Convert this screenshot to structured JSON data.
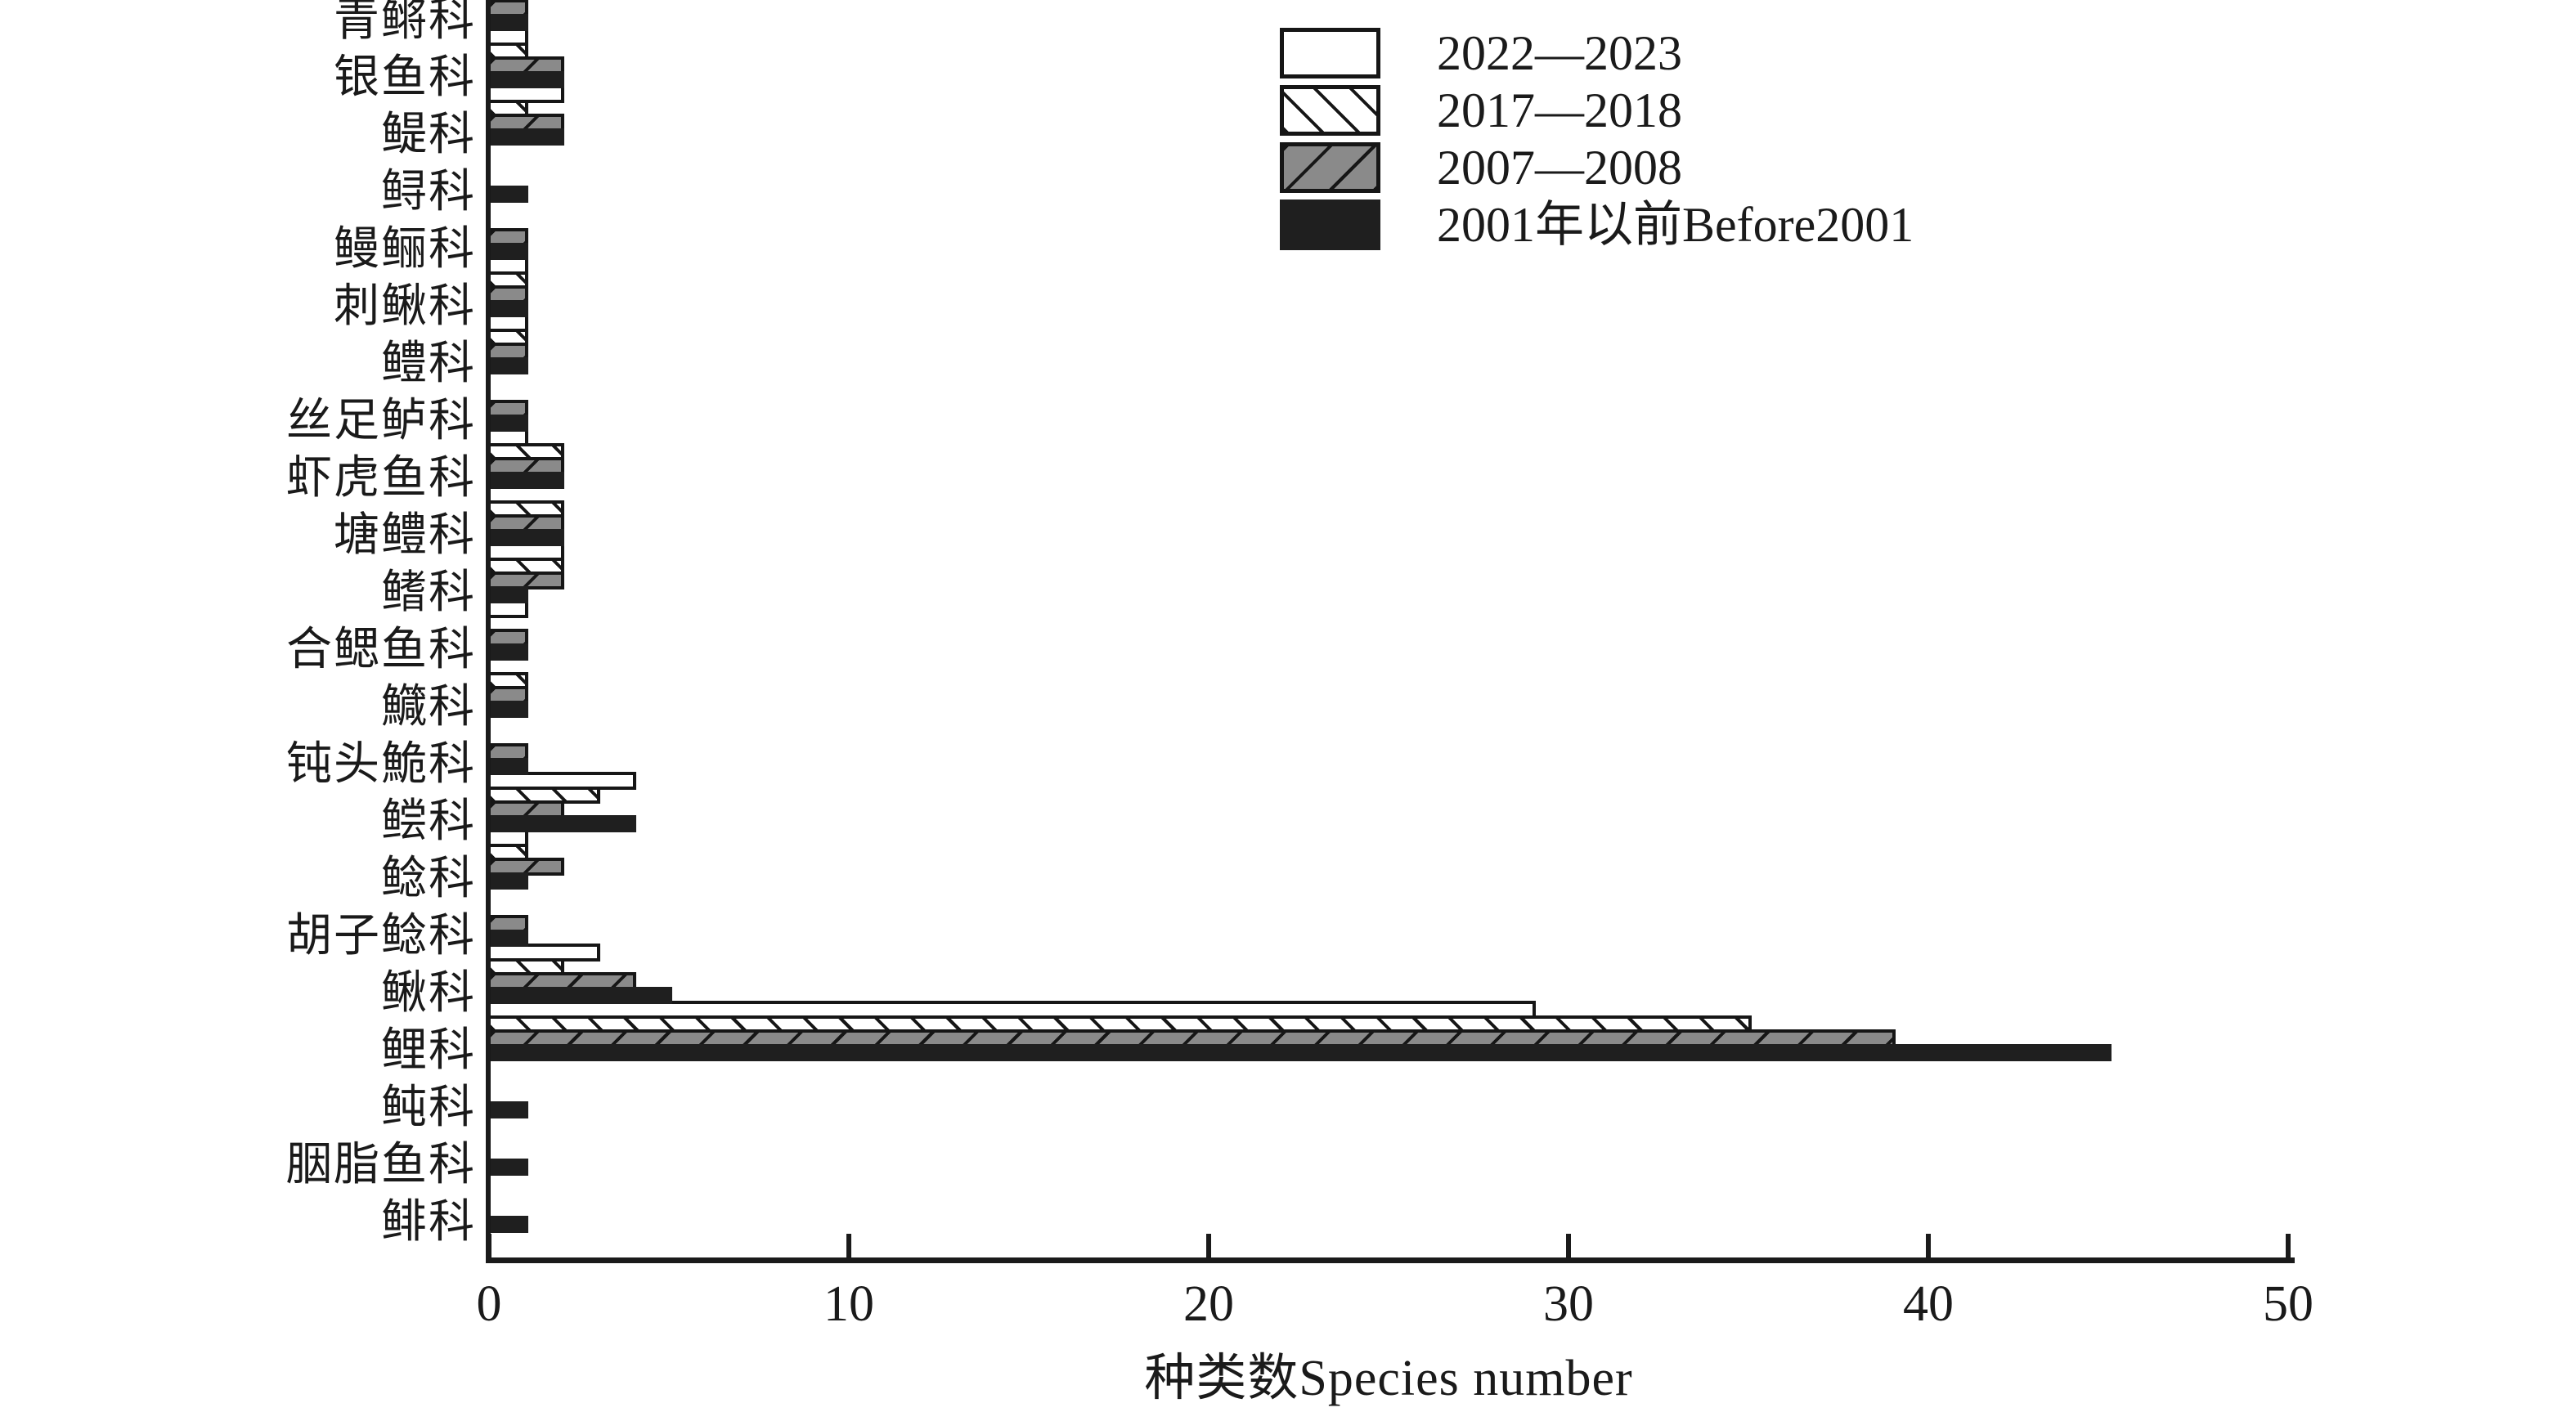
{
  "chart_data": {
    "type": "bar",
    "orientation": "horizontal",
    "title": "",
    "xlabel": "种类数Species number",
    "ylabel": "",
    "xlim": [
      0,
      50
    ],
    "xticks": [
      0,
      10,
      20,
      30,
      40,
      50
    ],
    "grid": false,
    "legend_position": "top-right",
    "axis_color": "#1a1a1a",
    "categories": [
      "青鳉科",
      "银鱼科",
      "鳀科",
      "鲟科",
      "鳗鲡科",
      "刺鳅科",
      "鳢科",
      "丝足鲈科",
      "虾虎鱼科",
      "塘鳢科",
      "鳍科",
      "合鳃鱼科",
      "鱵科",
      "钝头鮠科",
      "鲿科",
      "鲶科",
      "胡子鲶科",
      "鳅科",
      "鲤科",
      "鲀科",
      "胭脂鱼科",
      "鲱科"
    ],
    "series": [
      {
        "name": "2022—2023",
        "pattern": "solid",
        "fill": "#ffffff",
        "hatch": null,
        "values": [
          0,
          1,
          2,
          0,
          0,
          1,
          1,
          0,
          1,
          0,
          2,
          1,
          0,
          0,
          4,
          1,
          0,
          3,
          29,
          0,
          0,
          0
        ]
      },
      {
        "name": "2017—2018",
        "pattern": "hatch-backslash",
        "fill": "#ffffff",
        "hatch": "#161616",
        "values": [
          0,
          1,
          1,
          0,
          0,
          1,
          1,
          0,
          2,
          2,
          2,
          0,
          1,
          0,
          3,
          1,
          0,
          2,
          35,
          0,
          0,
          0
        ]
      },
      {
        "name": "2007—2008",
        "pattern": "hatch-forward-slash",
        "fill": "#8a8a8a",
        "hatch": "#161616",
        "values": [
          1,
          2,
          2,
          0,
          1,
          1,
          1,
          1,
          2,
          2,
          2,
          1,
          1,
          1,
          2,
          2,
          1,
          4,
          39,
          0,
          0,
          0
        ]
      },
      {
        "name": "2001年以前Before2001",
        "pattern": "solid",
        "fill": "#1f1f1f",
        "hatch": null,
        "values": [
          1,
          2,
          2,
          1,
          1,
          1,
          1,
          1,
          2,
          2,
          1,
          1,
          1,
          1,
          4,
          1,
          1,
          5,
          45,
          1,
          1,
          1
        ]
      }
    ]
  }
}
